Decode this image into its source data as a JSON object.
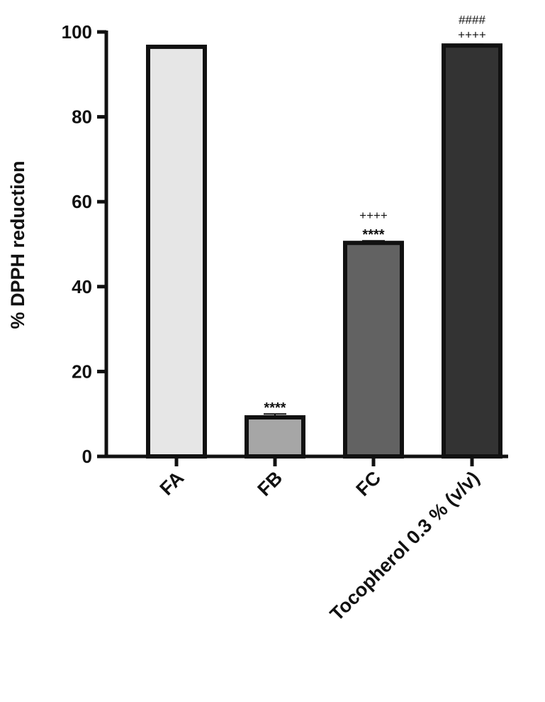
{
  "chart_data": {
    "type": "bar",
    "title": "",
    "xlabel": "",
    "ylabel": "% DPPH reduction",
    "ylim": [
      0,
      100
    ],
    "yticks": [
      0,
      20,
      40,
      60,
      80,
      100
    ],
    "grid": false,
    "categories": [
      "FA",
      "FB",
      "FC",
      "Tocopherol 0.3 % (v/v)"
    ],
    "values": [
      96.5,
      9.2,
      50.3,
      96.8
    ],
    "errors": [
      0.3,
      0.8,
      0.5,
      0.3
    ],
    "bar_colors": [
      "#e6e6e6",
      "#a6a6a6",
      "#626262",
      "#333333"
    ],
    "annotations": [
      [],
      [
        "****"
      ],
      [
        "****",
        "++++"
      ],
      [
        "++++",
        "####"
      ]
    ]
  }
}
